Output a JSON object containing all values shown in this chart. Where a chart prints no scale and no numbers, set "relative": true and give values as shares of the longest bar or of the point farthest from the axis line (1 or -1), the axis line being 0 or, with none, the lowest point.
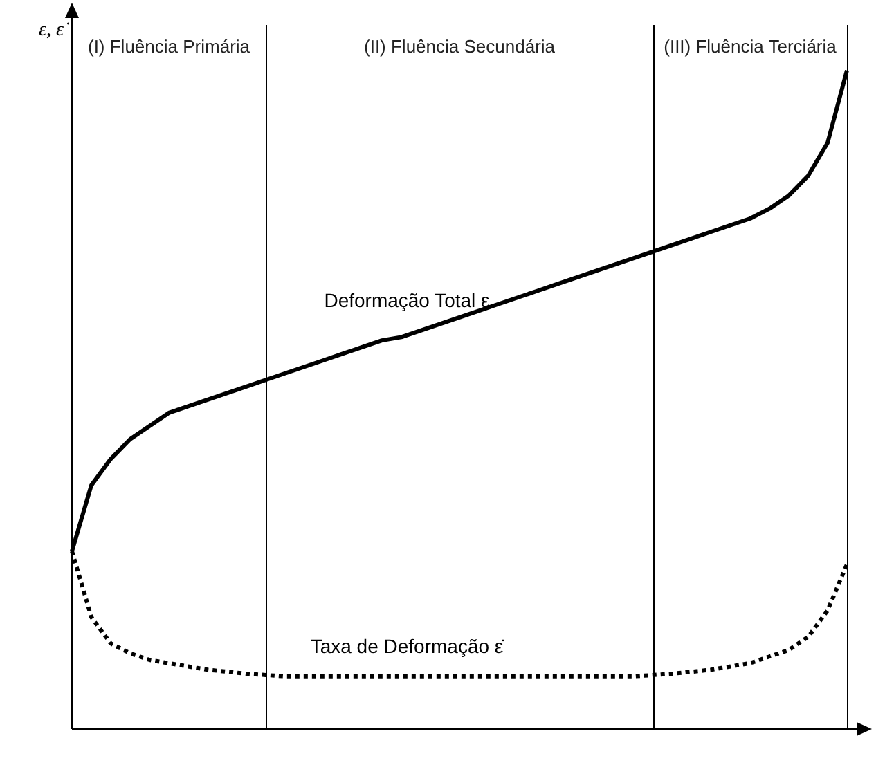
{
  "chart_data": {
    "type": "line",
    "relative": true,
    "ylabel": "ε, ε̇",
    "tick_labels": false,
    "legend": false,
    "marker": "none",
    "categories": [
      null,
      null,
      null,
      null,
      null,
      null,
      null,
      null,
      null,
      null,
      null,
      null,
      null,
      null,
      null,
      null,
      null,
      null,
      null,
      null,
      null,
      null,
      null,
      null,
      null,
      null,
      null,
      null,
      null,
      null,
      null,
      null,
      null,
      null,
      null,
      null,
      null,
      null,
      null,
      null,
      null
    ],
    "series": [
      {
        "name": "Deformação Total ε",
        "color": "#000000",
        "line_style": "solid",
        "values": [
          0.27,
          0.37,
          0.41,
          0.44,
          0.46,
          0.48,
          0.49,
          0.5,
          0.51,
          0.52,
          0.53,
          0.54,
          0.55,
          0.56,
          0.57,
          0.58,
          0.59,
          0.595,
          0.605,
          0.615,
          0.625,
          0.635,
          0.645,
          0.655,
          0.665,
          0.675,
          0.685,
          0.695,
          0.705,
          0.715,
          0.725,
          0.735,
          0.745,
          0.755,
          0.765,
          0.775,
          0.79,
          0.81,
          0.84,
          0.89,
          1
        ]
      },
      {
        "name": "Taxa de Deformação ε̇",
        "color": "#000000",
        "line_style": "dotted",
        "values": [
          0.27,
          0.17,
          0.13,
          0.115,
          0.105,
          0.1,
          0.095,
          0.09,
          0.087,
          0.084,
          0.082,
          0.08,
          0.08,
          0.08,
          0.08,
          0.08,
          0.08,
          0.08,
          0.08,
          0.08,
          0.08,
          0.08,
          0.08,
          0.08,
          0.08,
          0.08,
          0.08,
          0.08,
          0.08,
          0.08,
          0.082,
          0.084,
          0.087,
          0.09,
          0.095,
          0.1,
          0.11,
          0.12,
          0.14,
          0.18,
          0.25
        ]
      }
    ],
    "annotations": [
      "(I) Fluência Primária",
      "(II) Fluência Secundária",
      "(III) Fluência Terciária"
    ]
  }
}
